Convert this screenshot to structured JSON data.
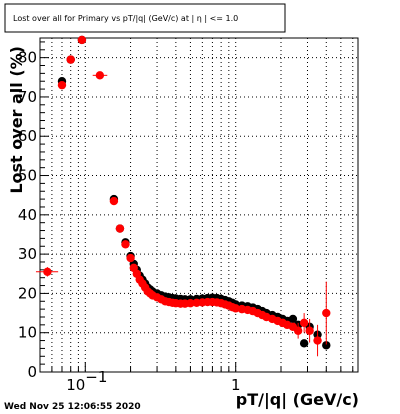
{
  "chart_data": {
    "type": "scatter",
    "title": "Lost over all for Primary vs pT/|q| (GeV/c) at | η | <= 1.0",
    "xlabel": "pT/|q| (GeV/c)",
    "ylabel": "Lost over all (%)",
    "xscale": "log",
    "xlim": [
      0.05,
      6.5
    ],
    "ylim": [
      0,
      85
    ],
    "grid": true,
    "y_ticks": [
      {
        "value": 0,
        "label": "0"
      },
      {
        "value": 10,
        "label": "10"
      },
      {
        "value": 20,
        "label": "20"
      },
      {
        "value": 30,
        "label": "30"
      },
      {
        "value": 40,
        "label": "40"
      },
      {
        "value": 50,
        "label": "50"
      },
      {
        "value": 60,
        "label": "60"
      },
      {
        "value": 70,
        "label": "70"
      },
      {
        "value": 80,
        "label": "80"
      }
    ],
    "x_ticks": [
      {
        "value": 0.1,
        "label": "10",
        "sup": "−1"
      },
      {
        "value": 1,
        "label": "1",
        "sup": ""
      }
    ],
    "x_minor_ticks": [
      0.05,
      0.06,
      0.07,
      0.08,
      0.09,
      0.2,
      0.3,
      0.4,
      0.5,
      0.6,
      0.7,
      0.8,
      0.9,
      2,
      3,
      4,
      5,
      6
    ],
    "x_grid": [
      0.06,
      0.07,
      0.08,
      0.09,
      0.1,
      0.2,
      0.3,
      0.4,
      0.5,
      0.6,
      0.7,
      0.8,
      0.9,
      1,
      2,
      3,
      4,
      5,
      6
    ],
    "series": [
      {
        "color": "#000000",
        "points": [
          {
            "x": 0.07,
            "y": 74
          },
          {
            "x": 0.08,
            "y": 79.5
          },
          {
            "x": 0.095,
            "y": 84.5
          },
          {
            "x": 0.155,
            "y": 44
          },
          {
            "x": 0.17,
            "y": 36.5
          },
          {
            "x": 0.185,
            "y": 33
          },
          {
            "x": 0.2,
            "y": 29.5
          },
          {
            "x": 0.21,
            "y": 27.5
          },
          {
            "x": 0.22,
            "y": 26
          },
          {
            "x": 0.23,
            "y": 24.5
          },
          {
            "x": 0.24,
            "y": 23.5
          },
          {
            "x": 0.25,
            "y": 22.5
          },
          {
            "x": 0.26,
            "y": 21.5
          },
          {
            "x": 0.27,
            "y": 21
          },
          {
            "x": 0.28,
            "y": 20.5
          },
          {
            "x": 0.3,
            "y": 20
          },
          {
            "x": 0.32,
            "y": 19.5
          },
          {
            "x": 0.34,
            "y": 19.2
          },
          {
            "x": 0.36,
            "y": 19
          },
          {
            "x": 0.38,
            "y": 18.8
          },
          {
            "x": 0.4,
            "y": 18.7
          },
          {
            "x": 0.43,
            "y": 18.6
          },
          {
            "x": 0.46,
            "y": 18.5
          },
          {
            "x": 0.5,
            "y": 18.5
          },
          {
            "x": 0.55,
            "y": 18.6
          },
          {
            "x": 0.6,
            "y": 18.7
          },
          {
            "x": 0.65,
            "y": 18.8
          },
          {
            "x": 0.7,
            "y": 18.9
          },
          {
            "x": 0.75,
            "y": 18.8
          },
          {
            "x": 0.8,
            "y": 18.6
          },
          {
            "x": 0.85,
            "y": 18.3
          },
          {
            "x": 0.9,
            "y": 18
          },
          {
            "x": 0.95,
            "y": 17.6
          },
          {
            "x": 1.0,
            "y": 17.2
          },
          {
            "x": 1.1,
            "y": 16.9
          },
          {
            "x": 1.2,
            "y": 16.7
          },
          {
            "x": 1.3,
            "y": 16.4
          },
          {
            "x": 1.4,
            "y": 16
          },
          {
            "x": 1.5,
            "y": 15.5
          },
          {
            "x": 1.6,
            "y": 15
          },
          {
            "x": 1.75,
            "y": 14.5
          },
          {
            "x": 1.9,
            "y": 14
          },
          {
            "x": 2.05,
            "y": 13.5
          },
          {
            "x": 2.2,
            "y": 13
          },
          {
            "x": 2.4,
            "y": 13.5
          },
          {
            "x": 2.6,
            "y": 12
          },
          {
            "x": 2.85,
            "y": 7.3
          },
          {
            "x": 3.1,
            "y": 11.5
          },
          {
            "x": 3.5,
            "y": 9.5
          },
          {
            "x": 4.0,
            "y": 6.8
          }
        ]
      },
      {
        "color": "#ff0000",
        "points": [
          {
            "x": 0.056,
            "y": 25.5,
            "xerr": [
              0.047,
              0.066
            ],
            "yerr": 1.2
          },
          {
            "x": 0.07,
            "y": 73,
            "xerr": [
              0.066,
              0.074
            ]
          },
          {
            "x": 0.08,
            "y": 79.5,
            "xerr": [
              0.076,
              0.084
            ]
          },
          {
            "x": 0.095,
            "y": 84.5,
            "xerr": [
              0.091,
              0.1
            ]
          },
          {
            "x": 0.125,
            "y": 75.5,
            "xerr": [
              0.112,
              0.14
            ]
          },
          {
            "x": 0.155,
            "y": 43.5
          },
          {
            "x": 0.17,
            "y": 36.5
          },
          {
            "x": 0.185,
            "y": 32.5
          },
          {
            "x": 0.2,
            "y": 29
          },
          {
            "x": 0.21,
            "y": 26.5
          },
          {
            "x": 0.22,
            "y": 25
          },
          {
            "x": 0.23,
            "y": 23.5
          },
          {
            "x": 0.24,
            "y": 22.5
          },
          {
            "x": 0.25,
            "y": 21.5
          },
          {
            "x": 0.26,
            "y": 20.5
          },
          {
            "x": 0.27,
            "y": 20
          },
          {
            "x": 0.28,
            "y": 19.5
          },
          {
            "x": 0.3,
            "y": 19
          },
          {
            "x": 0.32,
            "y": 18.5
          },
          {
            "x": 0.34,
            "y": 18
          },
          {
            "x": 0.36,
            "y": 17.8
          },
          {
            "x": 0.38,
            "y": 17.6
          },
          {
            "x": 0.4,
            "y": 17.5
          },
          {
            "x": 0.43,
            "y": 17.4
          },
          {
            "x": 0.46,
            "y": 17.4
          },
          {
            "x": 0.5,
            "y": 17.5
          },
          {
            "x": 0.55,
            "y": 17.6
          },
          {
            "x": 0.6,
            "y": 17.7
          },
          {
            "x": 0.65,
            "y": 17.8
          },
          {
            "x": 0.7,
            "y": 17.8
          },
          {
            "x": 0.75,
            "y": 17.7
          },
          {
            "x": 0.8,
            "y": 17.5
          },
          {
            "x": 0.85,
            "y": 17.2
          },
          {
            "x": 0.9,
            "y": 16.9
          },
          {
            "x": 0.95,
            "y": 16.5
          },
          {
            "x": 1.0,
            "y": 16.2
          },
          {
            "x": 1.1,
            "y": 16
          },
          {
            "x": 1.2,
            "y": 15.8
          },
          {
            "x": 1.3,
            "y": 15.5
          },
          {
            "x": 1.4,
            "y": 15
          },
          {
            "x": 1.5,
            "y": 14.5
          },
          {
            "x": 1.6,
            "y": 14
          },
          {
            "x": 1.75,
            "y": 13.5
          },
          {
            "x": 1.9,
            "y": 13
          },
          {
            "x": 2.05,
            "y": 12.5
          },
          {
            "x": 2.2,
            "y": 12
          },
          {
            "x": 2.4,
            "y": 11.5
          },
          {
            "x": 2.6,
            "y": 10.5,
            "yerr": 2
          },
          {
            "x": 2.85,
            "y": 12.5,
            "yerr": 2.5
          },
          {
            "x": 3.1,
            "y": 10.5,
            "yerr": 3
          },
          {
            "x": 3.5,
            "y": 8,
            "yerr": 4
          },
          {
            "x": 4.0,
            "y": 15,
            "yerr": 8
          }
        ]
      }
    ]
  },
  "timestamp": "Wed Nov 25 12:06:55 2020"
}
